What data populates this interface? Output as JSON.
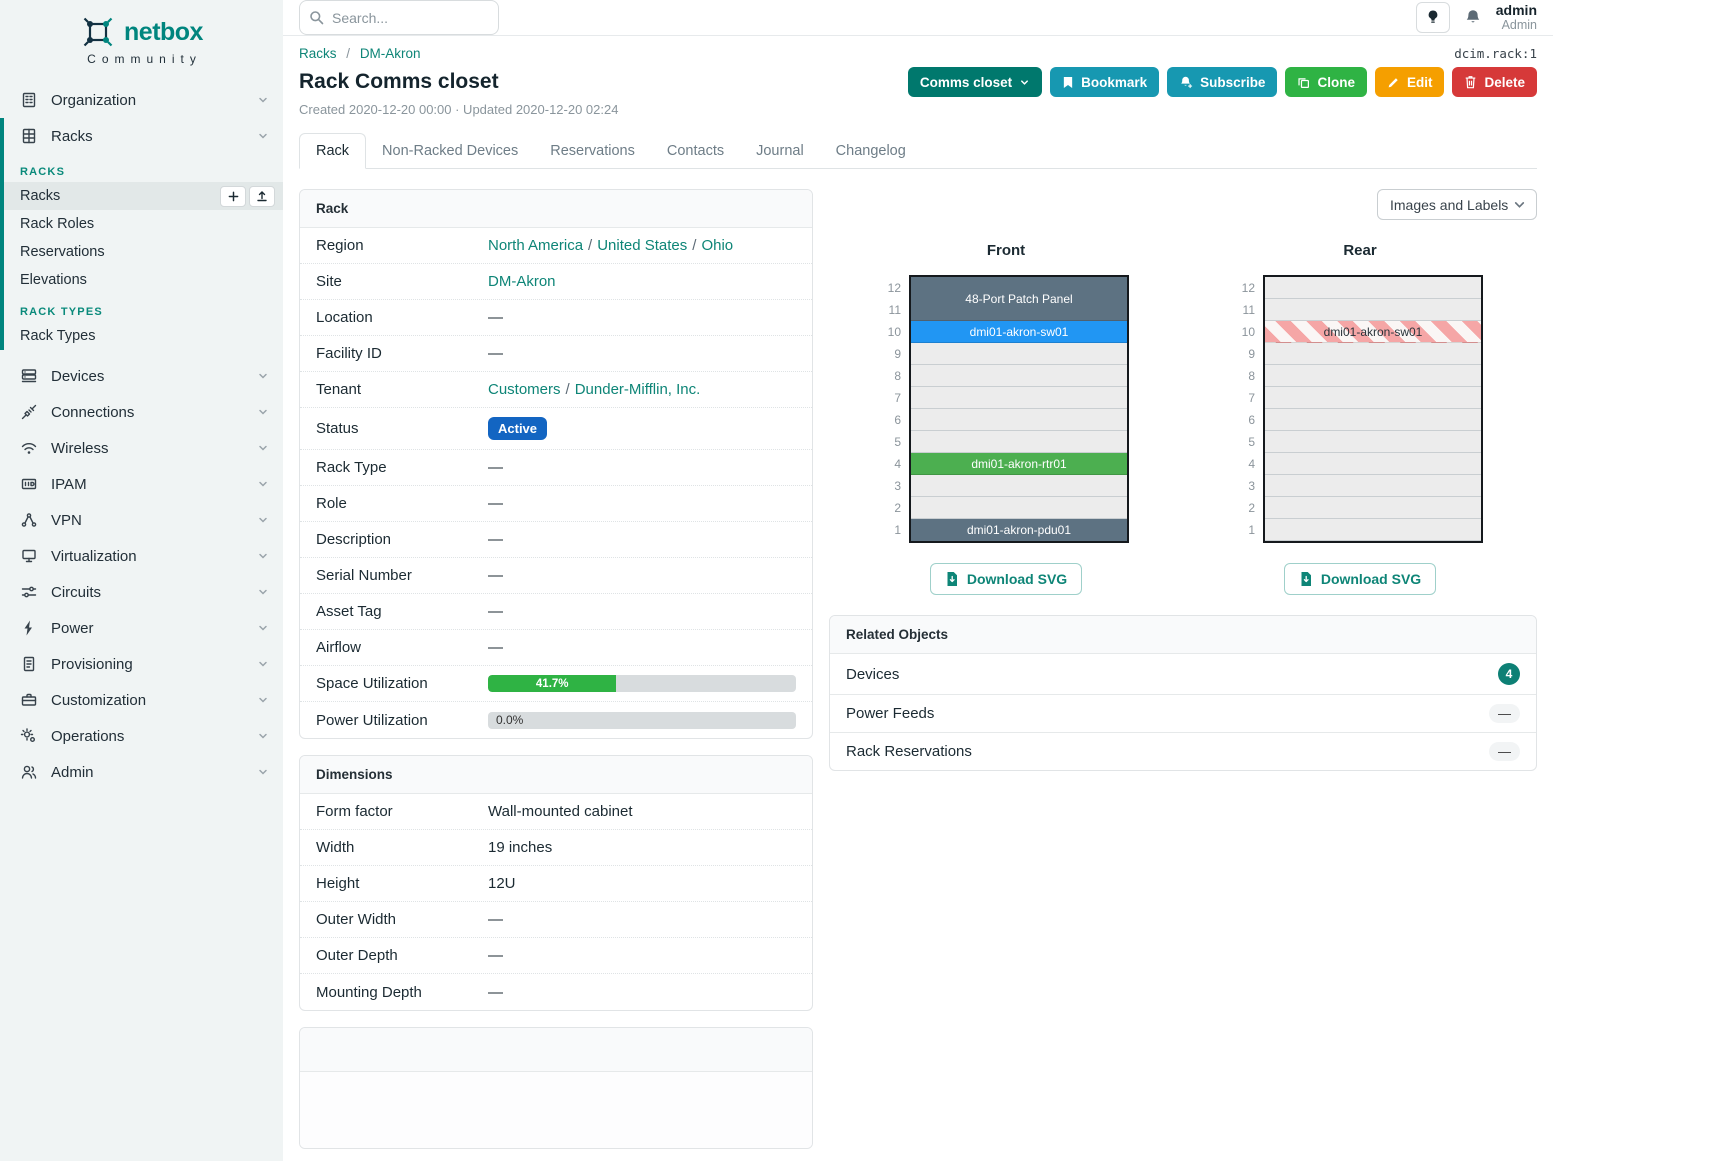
{
  "colors": {
    "brand_teal": "#00857e",
    "link_teal": "#0e8577",
    "status_active_blue": "#1365c2",
    "button_dark_teal": "#00786d",
    "button_cyan": "#1798b1",
    "button_green": "#2fb344",
    "button_amber": "#f59f00",
    "button_red": "#d63939",
    "progress_green": "#2fb344",
    "device_slate": "#5d7282",
    "device_blue": "#2196f3",
    "device_green": "#4caf50",
    "reserved_stripe_pink": "#f5a6a6",
    "badge_teal": "#0d8075"
  },
  "brand": {
    "name": "netbox",
    "tagline": "Community"
  },
  "sidebar": {
    "organization": "Organization",
    "racks_group": "Racks",
    "racks_header": "RACKS",
    "racks_items": [
      "Racks",
      "Rack Roles",
      "Reservations",
      "Elevations"
    ],
    "rack_types_header": "RACK TYPES",
    "rack_types_items": [
      "Rack Types"
    ],
    "nav_items": [
      "Devices",
      "Connections",
      "Wireless",
      "IPAM",
      "VPN",
      "Virtualization",
      "Circuits",
      "Power",
      "Provisioning",
      "Customization",
      "Operations",
      "Admin"
    ]
  },
  "header": {
    "search_placeholder": "Search...",
    "user_name": "admin",
    "user_role": "Admin"
  },
  "object_type": "dcim.rack:1",
  "breadcrumb": {
    "items": [
      "Racks",
      "DM-Akron"
    ],
    "separator": "/"
  },
  "page": {
    "title": "Rack Comms closet",
    "meta": "Created 2020-12-20 00:00 · Updated 2020-12-20 02:24"
  },
  "actions": {
    "name_button": "Comms closet",
    "bookmark": "Bookmark",
    "subscribe": "Subscribe",
    "clone": "Clone",
    "edit": "Edit",
    "delete": "Delete"
  },
  "tabs": [
    "Rack",
    "Non-Racked Devices",
    "Reservations",
    "Contacts",
    "Journal",
    "Changelog"
  ],
  "rack_panel": {
    "title": "Rack",
    "sep": "/",
    "region": {
      "label": "Region",
      "links": [
        "North America",
        "United States",
        "Ohio"
      ]
    },
    "site": {
      "label": "Site",
      "link": "DM-Akron"
    },
    "location": {
      "label": "Location",
      "value": "—"
    },
    "facility_id": {
      "label": "Facility ID",
      "value": "—"
    },
    "tenant": {
      "label": "Tenant",
      "links": [
        "Customers",
        "Dunder-Mifflin, Inc."
      ]
    },
    "status": {
      "label": "Status",
      "badge": "Active"
    },
    "rack_type": {
      "label": "Rack Type",
      "value": "—"
    },
    "role": {
      "label": "Role",
      "value": "—"
    },
    "description": {
      "label": "Description",
      "value": "—"
    },
    "serial_number": {
      "label": "Serial Number",
      "value": "—"
    },
    "asset_tag": {
      "label": "Asset Tag",
      "value": "—"
    },
    "airflow": {
      "label": "Airflow",
      "value": "—"
    },
    "space_utilization": {
      "label": "Space Utilization",
      "percent": 41.7,
      "text": "41.7%"
    },
    "power_utilization": {
      "label": "Power Utilization",
      "percent": 0,
      "text": "0.0%"
    }
  },
  "dimensions_panel": {
    "title": "Dimensions",
    "rows": [
      {
        "label": "Form factor",
        "value": "Wall-mounted cabinet"
      },
      {
        "label": "Width",
        "value": "19 inches"
      },
      {
        "label": "Height",
        "value": "12U"
      },
      {
        "label": "Outer Width",
        "value": "—"
      },
      {
        "label": "Outer Depth",
        "value": "—"
      },
      {
        "label": "Mounting Depth",
        "value": "—"
      }
    ]
  },
  "elevations": {
    "view_select": "Images and Labels",
    "download_label": "Download SVG",
    "front": {
      "title": "Front",
      "u_height": 12,
      "slots": [
        {
          "span": 2,
          "label": "48-Port Patch Panel",
          "style": "slate"
        },
        {
          "span": 1,
          "label": "dmi01-akron-sw01",
          "style": "blue"
        },
        {
          "span": 1,
          "style": "empty"
        },
        {
          "span": 1,
          "style": "empty"
        },
        {
          "span": 1,
          "style": "empty"
        },
        {
          "span": 1,
          "style": "empty"
        },
        {
          "span": 1,
          "style": "empty"
        },
        {
          "span": 1,
          "label": "dmi01-akron-rtr01",
          "style": "green"
        },
        {
          "span": 1,
          "style": "empty"
        },
        {
          "span": 1,
          "style": "empty"
        },
        {
          "span": 1,
          "label": "dmi01-akron-pdu01",
          "style": "slate"
        }
      ]
    },
    "rear": {
      "title": "Rear",
      "u_height": 12,
      "slots": [
        {
          "span": 1,
          "style": "empty"
        },
        {
          "span": 1,
          "style": "empty"
        },
        {
          "span": 1,
          "label": "dmi01-akron-sw01",
          "style": "striped"
        },
        {
          "span": 1,
          "style": "empty"
        },
        {
          "span": 1,
          "style": "empty"
        },
        {
          "span": 1,
          "style": "empty"
        },
        {
          "span": 1,
          "style": "empty"
        },
        {
          "span": 1,
          "style": "empty"
        },
        {
          "span": 1,
          "style": "empty"
        },
        {
          "span": 1,
          "style": "empty"
        },
        {
          "span": 1,
          "style": "empty"
        },
        {
          "span": 1,
          "style": "empty"
        }
      ]
    }
  },
  "related_panel": {
    "title": "Related Objects",
    "rows": [
      {
        "label": "Devices",
        "count": "4"
      },
      {
        "label": "Power Feeds",
        "value": "—"
      },
      {
        "label": "Rack Reservations",
        "value": "—"
      }
    ]
  }
}
